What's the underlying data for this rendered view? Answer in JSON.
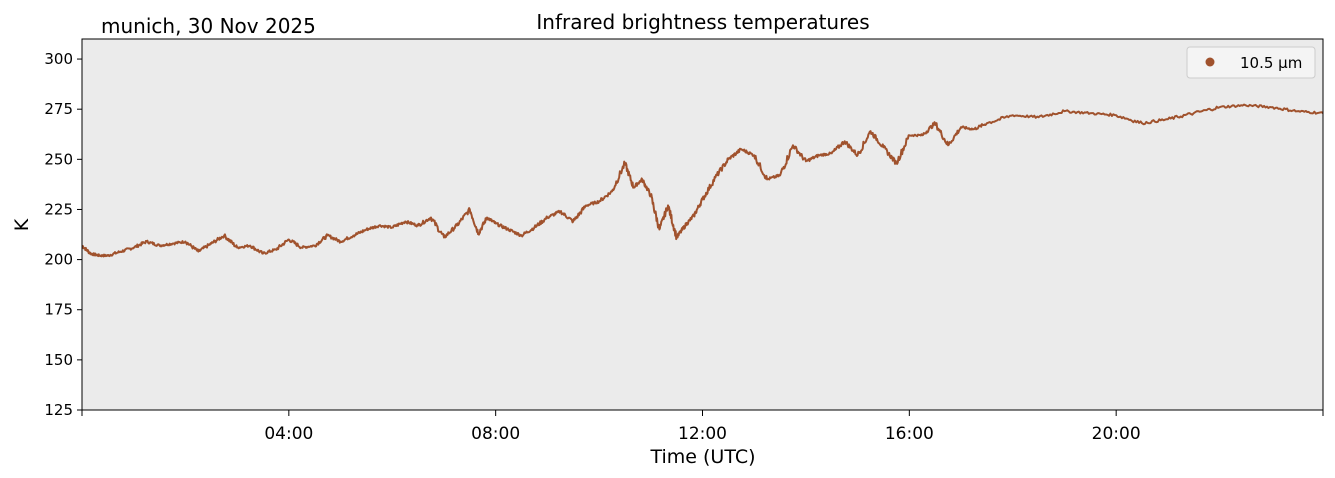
{
  "chart_data": {
    "type": "line",
    "title": "Infrared brightness temperatures",
    "subtitle": "munich, 30 Nov 2025",
    "xlabel": "Time (UTC)",
    "ylabel": "K",
    "xlim": [
      "00:00",
      "24:00"
    ],
    "ylim": [
      125,
      310
    ],
    "x_ticks": [
      "04:00",
      "08:00",
      "12:00",
      "16:00",
      "20:00"
    ],
    "y_ticks": [
      125,
      150,
      175,
      200,
      225,
      250,
      275,
      300
    ],
    "grid": false,
    "legend_position": "top-right",
    "colors": {
      "series": "#a0522d",
      "plot_bg": "#ebebeb"
    },
    "series": [
      {
        "name": "10.5 µm",
        "x": [
          "00:00",
          "00:10",
          "00:20",
          "00:30",
          "00:45",
          "01:00",
          "01:15",
          "01:30",
          "01:45",
          "02:00",
          "02:15",
          "02:30",
          "02:45",
          "03:00",
          "03:15",
          "03:30",
          "03:45",
          "04:00",
          "04:15",
          "04:30",
          "04:45",
          "05:00",
          "05:15",
          "05:30",
          "05:45",
          "06:00",
          "06:15",
          "06:30",
          "06:45",
          "07:00",
          "07:15",
          "07:30",
          "07:40",
          "07:50",
          "08:00",
          "08:15",
          "08:30",
          "08:45",
          "09:00",
          "09:15",
          "09:30",
          "09:45",
          "10:00",
          "10:15",
          "10:30",
          "10:40",
          "10:50",
          "11:00",
          "11:10",
          "11:20",
          "11:30",
          "11:40",
          "11:50",
          "12:00",
          "12:15",
          "12:30",
          "12:45",
          "13:00",
          "13:15",
          "13:30",
          "13:45",
          "14:00",
          "14:15",
          "14:30",
          "14:45",
          "15:00",
          "15:15",
          "15:30",
          "15:45",
          "16:00",
          "16:15",
          "16:30",
          "16:45",
          "17:00",
          "17:15",
          "17:30",
          "18:00",
          "18:30",
          "19:00",
          "19:30",
          "20:00",
          "20:30",
          "21:00",
          "21:30",
          "22:00",
          "22:30",
          "23:00",
          "23:30",
          "24:00"
        ],
        "y": [
          207,
          203,
          202,
          202,
          204,
          206,
          209,
          207,
          208,
          209,
          204,
          208,
          212,
          206,
          207,
          203,
          205,
          210,
          206,
          207,
          212,
          209,
          212,
          215,
          217,
          216,
          219,
          217,
          221,
          211,
          217,
          225,
          213,
          221,
          218,
          215,
          212,
          216,
          221,
          224,
          219,
          227,
          229,
          234,
          248,
          236,
          240,
          232,
          215,
          227,
          211,
          217,
          222,
          230,
          241,
          250,
          255,
          252,
          240,
          242,
          257,
          249,
          252,
          253,
          259,
          252,
          264,
          256,
          248,
          262,
          262,
          268,
          257,
          266,
          265,
          268,
          272,
          271,
          274,
          273,
          272,
          268,
          270,
          273,
          276,
          277,
          276,
          274,
          273
        ]
      }
    ]
  }
}
